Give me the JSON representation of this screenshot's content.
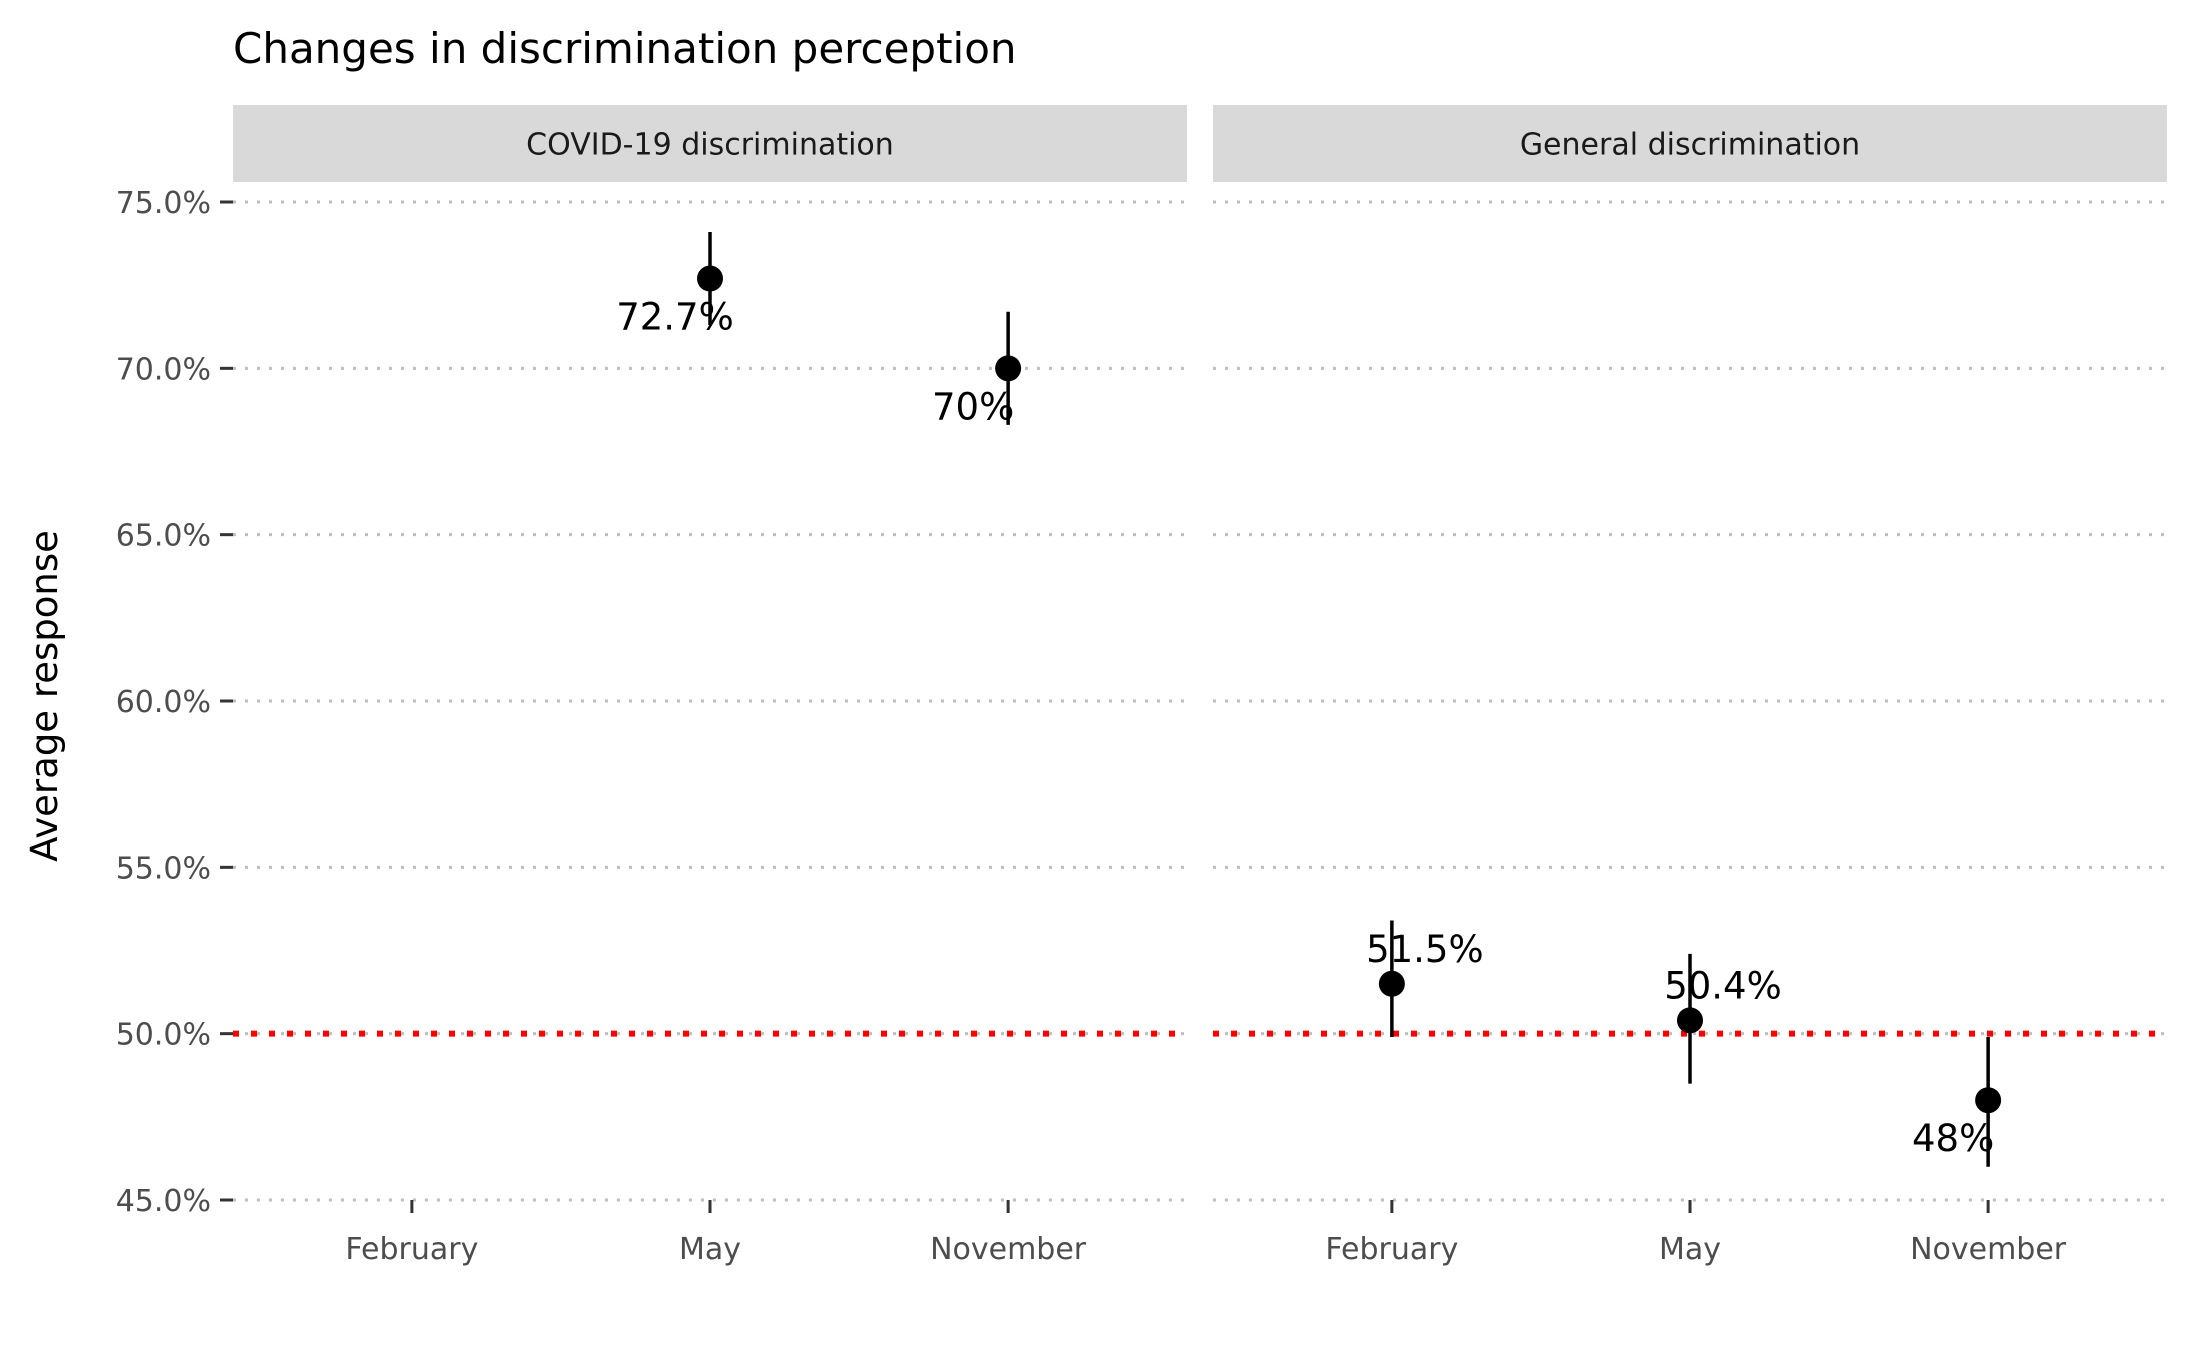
{
  "chart_data": {
    "type": "scatter",
    "title": "Changes in discrimination perception",
    "xlabel": "",
    "ylabel": "Average response",
    "ylim": [
      45.0,
      75.0
    ],
    "y_ticks": [
      "45.0%",
      "50.0%",
      "55.0%",
      "60.0%",
      "65.0%",
      "70.0%",
      "75.0%"
    ],
    "y_tick_values": [
      45,
      50,
      55,
      60,
      65,
      70,
      75
    ],
    "categories": [
      "February",
      "May",
      "November"
    ],
    "grid": "horizontal dotted",
    "reference_line": {
      "y": 50,
      "color": "#ff0000",
      "style": "dotted"
    },
    "panels": [
      {
        "name": "COVID-19 discrimination",
        "points": [
          {
            "x": "May",
            "y": 72.7,
            "ymin": 71.3,
            "ymax": 74.1,
            "label": "72.7%"
          },
          {
            "x": "November",
            "y": 70.0,
            "ymin": 68.3,
            "ymax": 71.7,
            "label": "70%"
          }
        ]
      },
      {
        "name": "General discrimination",
        "points": [
          {
            "x": "February",
            "y": 51.5,
            "ymin": 49.9,
            "ymax": 53.4,
            "label": "51.5%"
          },
          {
            "x": "May",
            "y": 50.4,
            "ymin": 48.5,
            "ymax": 52.4,
            "label": "50.4%"
          },
          {
            "x": "November",
            "y": 48.0,
            "ymin": 46.0,
            "ymax": 49.9,
            "label": "48%"
          }
        ]
      }
    ]
  },
  "colors": {
    "strip_background": "#d9d9d9",
    "grid": "#bebebe",
    "reference": "#ff0000",
    "point": "#000000"
  }
}
